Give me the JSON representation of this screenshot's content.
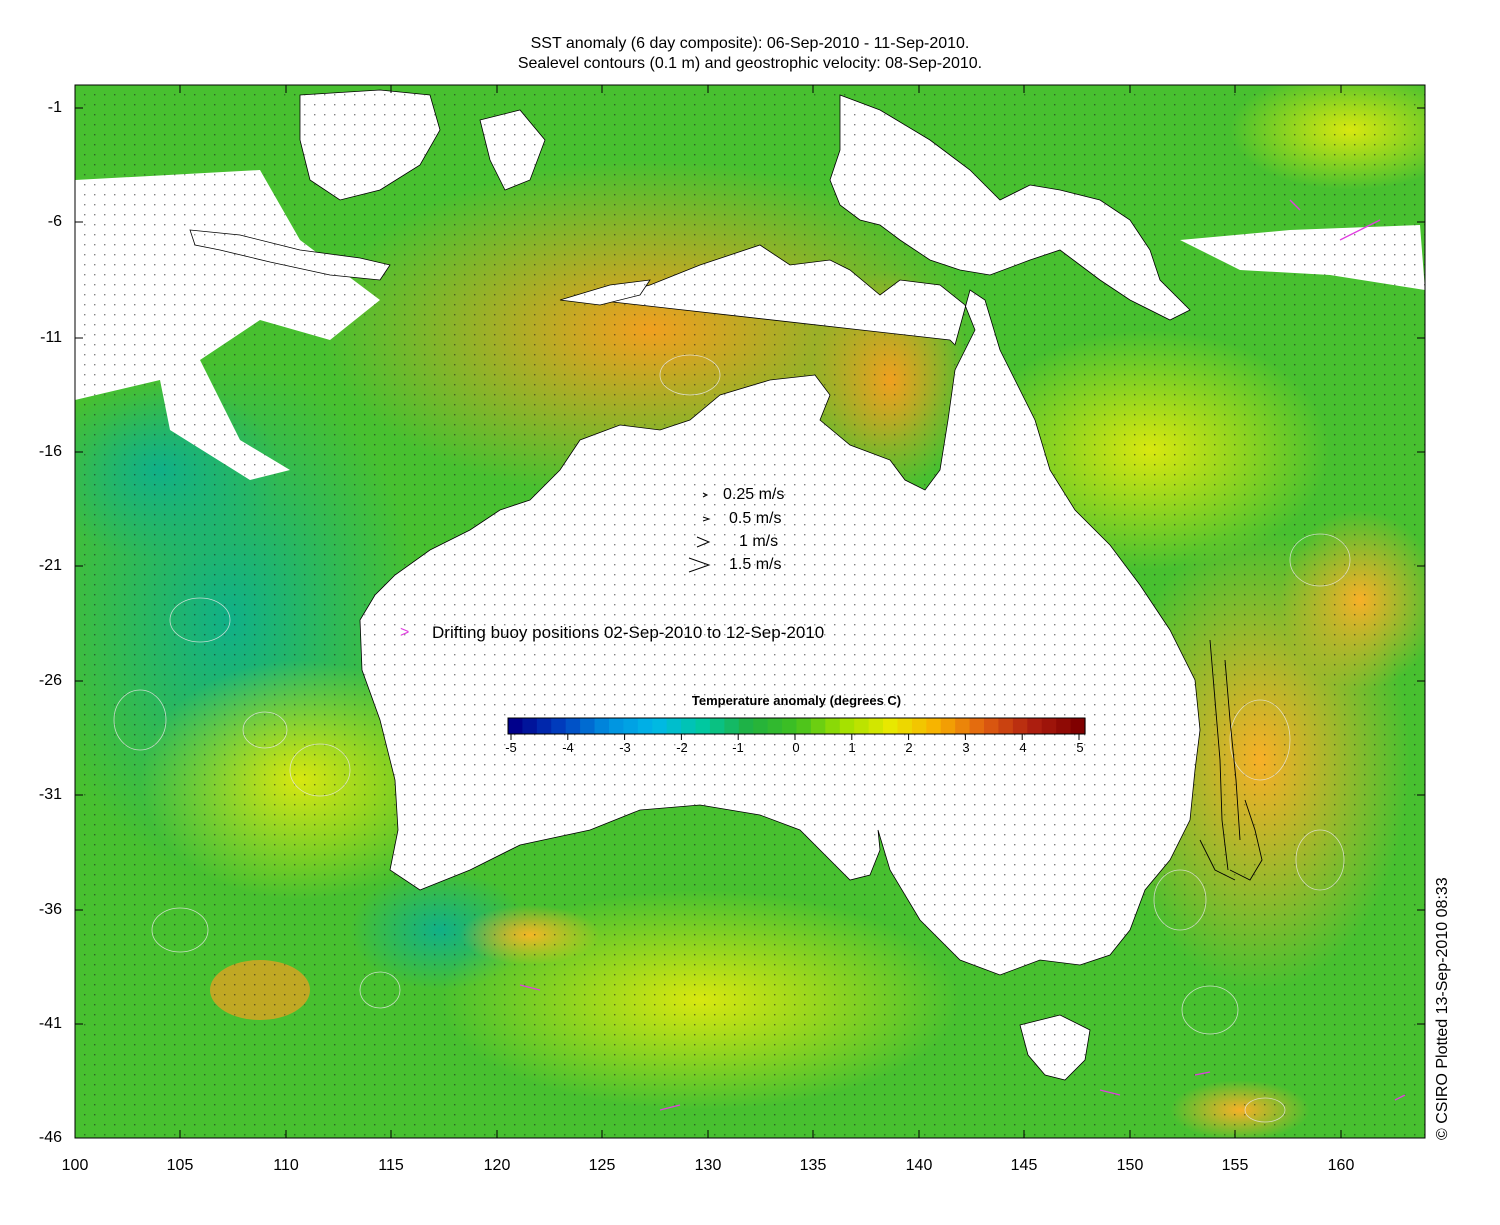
{
  "title": {
    "line1": "SST anomaly (6 day composite): 06-Sep-2010 - 11-Sep-2010.",
    "line2": "Sealevel contours (0.1 m) and geostrophic velocity: 08-Sep-2010."
  },
  "axes": {
    "y_ticks": [
      "-1",
      "-6",
      "-11",
      "-16",
      "-21",
      "-26",
      "-31",
      "-36",
      "-41",
      "-46"
    ],
    "x_ticks": [
      "100",
      "105",
      "110",
      "115",
      "120",
      "125",
      "130",
      "135",
      "140",
      "145",
      "150",
      "155",
      "160"
    ],
    "lat_range": [
      -46,
      -1
    ],
    "lon_range": [
      100,
      164
    ]
  },
  "velocity_legend": [
    {
      "label": "0.25 m/s",
      "speed": 0.25
    },
    {
      "label": "0.5 m/s",
      "speed": 0.5
    },
    {
      "label": "1 m/s",
      "speed": 1
    },
    {
      "label": "1.5 m/s",
      "speed": 1.5
    }
  ],
  "buoy_legend": {
    "symbol": ">",
    "label": "Drifting buoy positions 02-Sep-2010 to 12-Sep-2010",
    "color": "#e040e0"
  },
  "colorbar": {
    "title": "Temperature anomaly (degrees C)",
    "ticks": [
      "-5",
      "-4",
      "-3",
      "-2",
      "-1",
      "0",
      "1",
      "2",
      "3",
      "4",
      "5"
    ],
    "range": [
      -5,
      5
    ],
    "colors": [
      "#00008b",
      "#0040c0",
      "#0090e0",
      "#00b8e8",
      "#00c8a0",
      "#20b040",
      "#40c020",
      "#a0e000",
      "#e8e800",
      "#f8b000",
      "#e06010",
      "#b02010",
      "#800000"
    ]
  },
  "credit": "© CSIRO Plotted 13-Sep-2010 08:33"
}
